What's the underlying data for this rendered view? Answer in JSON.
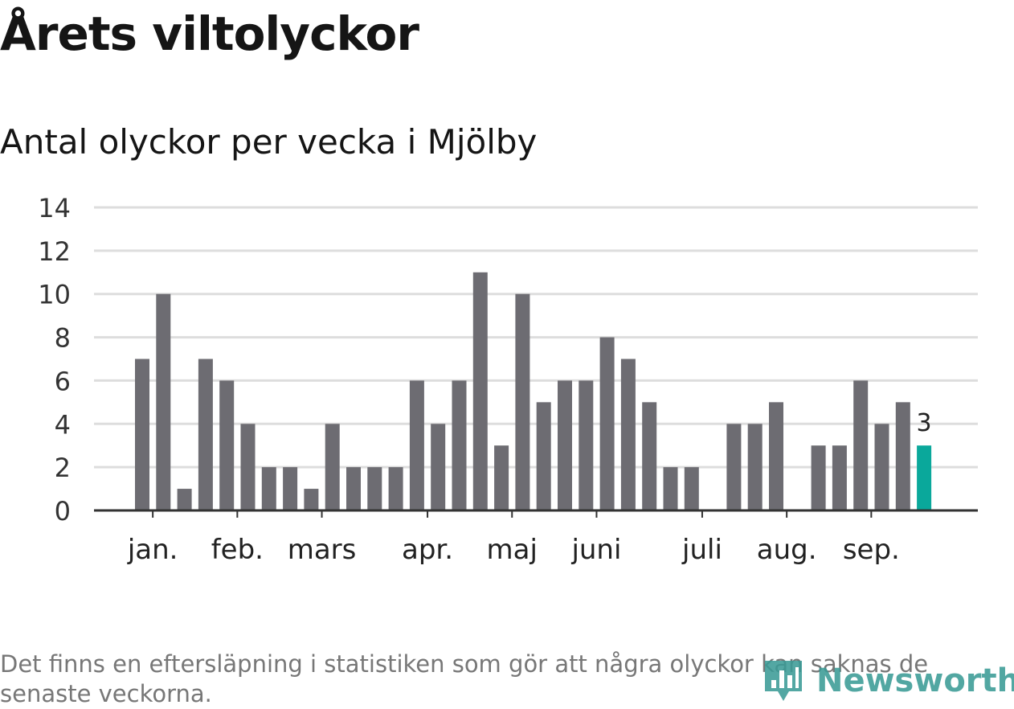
{
  "header": {
    "title": "Årets viltolyckor",
    "subtitle": "Antal olyckor per vecka i Mjölby"
  },
  "footer": {
    "note": "Det finns en eftersläpning i statistiken som gör att några olyckor kan saknas de senaste veckorna.",
    "logo_text": "Newsworthy"
  },
  "colors": {
    "bar": "#6d6c72",
    "highlight": "#0aa89b",
    "grid": "#dddddd",
    "axis": "#333333",
    "logo": "#3b9b96"
  },
  "chart_data": {
    "type": "bar",
    "title": "Antal olyckor per vecka i Mjölby",
    "xlabel": "",
    "ylabel": "",
    "ylim": [
      0,
      14
    ],
    "yticks": [
      0,
      2,
      4,
      6,
      8,
      10,
      12,
      14
    ],
    "grid": true,
    "weeks": [
      1,
      2,
      3,
      4,
      5,
      6,
      7,
      8,
      9,
      10,
      11,
      12,
      13,
      14,
      15,
      16,
      17,
      18,
      19,
      20,
      21,
      22,
      23,
      24,
      25,
      26,
      27,
      28,
      29,
      30,
      31,
      32,
      33,
      34,
      35,
      36,
      37,
      38
    ],
    "values": [
      7,
      10,
      1,
      7,
      6,
      4,
      2,
      2,
      1,
      4,
      2,
      2,
      2,
      6,
      4,
      6,
      11,
      3,
      10,
      5,
      6,
      6,
      8,
      7,
      5,
      2,
      2,
      0,
      4,
      4,
      5,
      0,
      3,
      3,
      6,
      4,
      5,
      3
    ],
    "highlight_index": 37,
    "highlight_label": "3",
    "month_labels": [
      {
        "label": "jan.",
        "week": 1.5
      },
      {
        "label": "feb.",
        "week": 5.5
      },
      {
        "label": "mars",
        "week": 9.5
      },
      {
        "label": "apr.",
        "week": 14.5
      },
      {
        "label": "maj",
        "week": 18.5
      },
      {
        "label": "juni",
        "week": 22.5
      },
      {
        "label": "juli",
        "week": 27.5
      },
      {
        "label": "aug.",
        "week": 31.5
      },
      {
        "label": "sep.",
        "week": 35.5
      }
    ]
  }
}
